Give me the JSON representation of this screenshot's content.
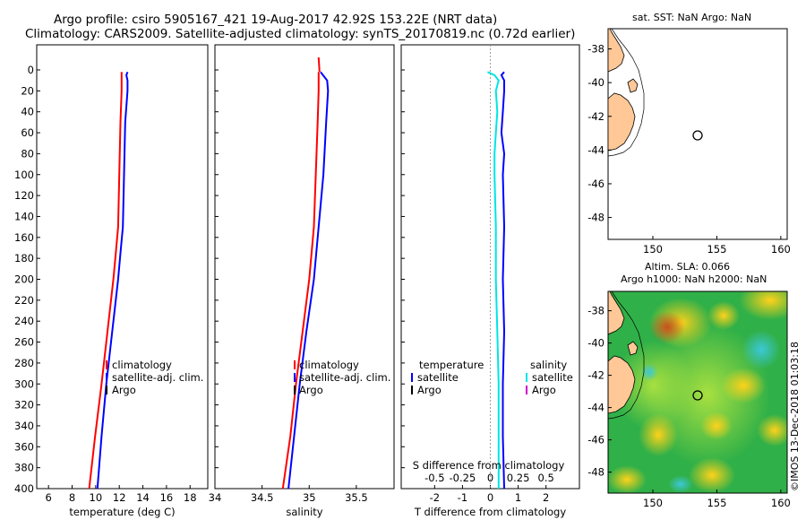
{
  "title_line1": "Argo profile: csiro 5905167_421 19-Aug-2017 42.92S 153.22E (NRT data)",
  "title_line2": "Climatology: CARS2009. Satellite-adjusted climatology: synTS_20170819.nc (0.72d earlier)",
  "watermark": "©IMOS 13-Dec-2018 01:03:18",
  "colors": {
    "red": "#ff0000",
    "blue": "#0000ff",
    "black": "#000000",
    "cyan": "#00e5e5",
    "magenta": "#cc00cc"
  },
  "chart_data": [
    {
      "id": "temperature",
      "type": "line",
      "xlabel": "temperature (deg C)",
      "ylabel": "",
      "xlim": [
        5,
        19.5
      ],
      "ylim": [
        400,
        0
      ],
      "xticks": [
        6,
        8,
        10,
        12,
        14,
        16,
        18
      ],
      "xtick_labels": [
        "6",
        "8",
        "10",
        "12",
        "14",
        "16",
        "18"
      ],
      "yticks": [
        0,
        20,
        40,
        60,
        80,
        100,
        120,
        140,
        160,
        180,
        200,
        220,
        240,
        260,
        280,
        300,
        320,
        340,
        360,
        380,
        400
      ],
      "ytick_labels": [
        "0",
        "20",
        "40",
        "60",
        "80",
        "100",
        "120",
        "140",
        "160",
        "180",
        "200",
        "220",
        "240",
        "260",
        "280",
        "300",
        "320",
        "340",
        "360",
        "380",
        "400"
      ],
      "legend": [
        "climatology",
        "satellite-adj. clim.",
        "Argo"
      ],
      "series": [
        {
          "name": "climatology",
          "color": "red",
          "depth": [
            2,
            20,
            50,
            100,
            150,
            175,
            200,
            250,
            300,
            350,
            400
          ],
          "x": [
            12.2,
            12.2,
            12.1,
            12.0,
            11.9,
            11.7,
            11.5,
            11.0,
            10.5,
            9.95,
            9.45
          ]
        },
        {
          "name": "satellite-adj. clim.",
          "color": "blue",
          "depth": [
            2,
            5,
            10,
            20,
            50,
            100,
            150,
            175,
            200,
            250,
            300,
            350,
            400
          ],
          "x": [
            12.7,
            12.6,
            12.7,
            12.7,
            12.5,
            12.4,
            12.3,
            12.1,
            11.9,
            11.4,
            10.9,
            10.5,
            10.15
          ]
        }
      ]
    },
    {
      "id": "salinity",
      "type": "line",
      "xlabel": "salinity",
      "xlim": [
        34,
        35.9
      ],
      "ylim": [
        400,
        0
      ],
      "xticks": [
        34,
        34.5,
        35,
        35.5
      ],
      "xtick_labels": [
        "34",
        "34.5",
        "35",
        "35.5"
      ],
      "legend": [
        "climatology",
        "satellite-adj. clim.",
        "Argo"
      ],
      "series": [
        {
          "name": "climatology",
          "color": "red",
          "depth": [
            2,
            20,
            50,
            100,
            150,
            200,
            250,
            300,
            350,
            400
          ],
          "x": [
            35.1,
            35.1,
            35.09,
            35.07,
            35.05,
            35.0,
            34.93,
            34.86,
            34.8,
            34.72
          ],
          "marker_depth": 2
        },
        {
          "name": "satellite-adj. clim.",
          "color": "blue",
          "depth": [
            2,
            10,
            20,
            50,
            100,
            150,
            200,
            250,
            300,
            350,
            400
          ],
          "x": [
            35.12,
            35.19,
            35.2,
            35.18,
            35.15,
            35.1,
            35.05,
            34.97,
            34.9,
            34.84,
            34.78
          ]
        }
      ]
    },
    {
      "id": "difference",
      "type": "line",
      "xlabel": "T difference from climatology",
      "xlabel_top": "S difference from climatology",
      "xlim": [
        -3.2,
        3.2
      ],
      "ylim": [
        400,
        0
      ],
      "xticks": [
        -2,
        -1,
        0,
        1,
        2
      ],
      "xtick_labels": [
        "-2",
        "-1",
        "0",
        "1",
        "2"
      ],
      "top_tick_labels": [
        "-0.5",
        "-0.25",
        "0",
        "0.25",
        "0.5"
      ],
      "legend_temperature": {
        "title": "temperature",
        "items": [
          "satellite",
          "Argo"
        ]
      },
      "legend_salinity": {
        "title": "salinity",
        "items": [
          "satellite",
          "Argo"
        ]
      },
      "series": [
        {
          "name": "temperature satellite",
          "color": "blue",
          "depth": [
            2,
            5,
            10,
            20,
            40,
            60,
            80,
            100,
            150,
            200,
            250,
            300,
            350,
            400
          ],
          "x": [
            0.5,
            0.4,
            0.5,
            0.5,
            0.45,
            0.4,
            0.5,
            0.45,
            0.5,
            0.45,
            0.5,
            0.45,
            0.45,
            0.5
          ]
        },
        {
          "name": "salinity satellite",
          "color": "cyan",
          "depth": [
            2,
            5,
            10,
            20,
            40,
            60,
            80,
            100,
            150,
            200,
            250,
            300,
            350,
            400
          ],
          "x": [
            -0.1,
            0.15,
            0.3,
            0.2,
            0.25,
            0.2,
            0.15,
            0.15,
            0.2,
            0.2,
            0.25,
            0.3,
            0.3,
            0.3
          ]
        }
      ]
    },
    {
      "id": "sst_map",
      "type": "map",
      "title": "sat. SST: NaN Argo: NaN",
      "xlim": [
        146.5,
        160.5
      ],
      "ylim": [
        -49.3,
        -36.8
      ],
      "xticks": [
        150,
        155,
        160
      ],
      "xtick_labels": [
        "150",
        "155",
        "160"
      ],
      "yticks": [
        -38,
        -40,
        -42,
        -44,
        -46,
        -48
      ],
      "ytick_labels": [
        "-38",
        "-40",
        "-42",
        "-44",
        "-46",
        "-48"
      ],
      "float_position": {
        "lon": 153.22,
        "lat": -42.92
      }
    },
    {
      "id": "sla_map",
      "type": "heatmap",
      "title_line1": "Altim. SLA: 0.066",
      "title_line2": "Argo h1000: NaN h2000: NaN",
      "xlim": [
        146.5,
        160.5
      ],
      "ylim": [
        -49.3,
        -36.8
      ],
      "xticks": [
        150,
        155,
        160
      ],
      "xtick_labels": [
        "150",
        "155",
        "160"
      ],
      "yticks": [
        -38,
        -40,
        -42,
        -44,
        -46,
        -48
      ],
      "ytick_labels": [
        "-38",
        "-40",
        "-42",
        "-44",
        "-46",
        "-48"
      ],
      "float_position": {
        "lon": 153.22,
        "lat": -42.92
      }
    }
  ]
}
